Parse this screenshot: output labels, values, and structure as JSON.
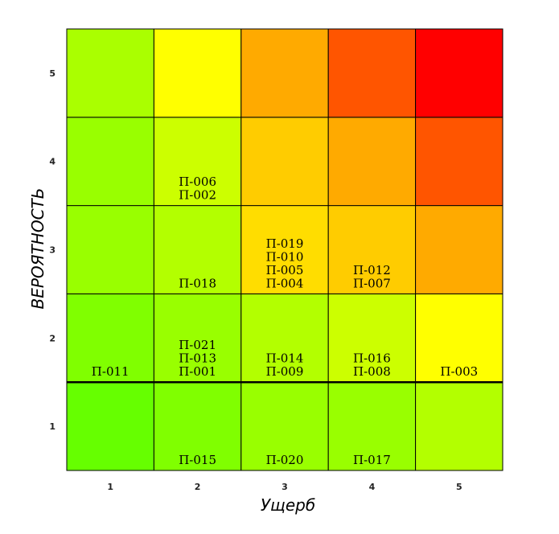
{
  "chart_data": {
    "type": "heatmap",
    "title": "",
    "xlabel": "Ущерб",
    "ylabel": "ВЕРОЯТНОСТЬ",
    "x_categories": [
      "1",
      "2",
      "3",
      "4",
      "5"
    ],
    "y_categories": [
      "1",
      "2",
      "3",
      "4",
      "5"
    ],
    "colors": [
      [
        "#66ff00",
        "#80ff00",
        "#99ff00",
        "#99ff00",
        "#b3ff00"
      ],
      [
        "#80ff00",
        "#99ff00",
        "#b3ff00",
        "#ccff00",
        "#ffff00"
      ],
      [
        "#99ff00",
        "#b3ff00",
        "#ffdd00",
        "#ffcc00",
        "#ffaa00"
      ],
      [
        "#99ff00",
        "#ccff00",
        "#ffcc00",
        "#ffaa00",
        "#ff5500"
      ],
      [
        "#aaff00",
        "#ffff00",
        "#ffaa00",
        "#ff5500",
        "#ff0000"
      ]
    ],
    "cells": [
      [
        "",
        "П-015",
        "П-020",
        "П-017",
        ""
      ],
      [
        "П-011",
        "П-021\nП-013\nП-001",
        "П-014\nП-009",
        "П-016\nП-008",
        "П-003"
      ],
      [
        "",
        "П-018",
        "П-019\nП-010\nП-005\nП-004",
        "П-012\nП-007",
        ""
      ],
      [
        "",
        "П-006\nП-002",
        "",
        "",
        ""
      ],
      [
        "",
        "",
        "",
        "",
        ""
      ]
    ]
  }
}
